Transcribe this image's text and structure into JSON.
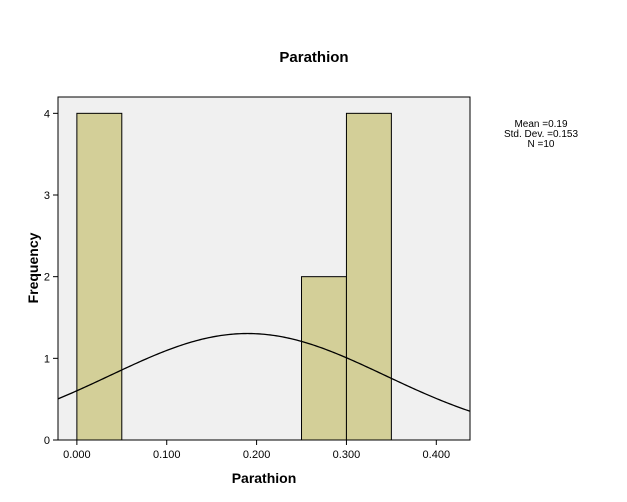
{
  "chart_data": {
    "type": "bar",
    "title": "Parathion",
    "xlabel": "Parathion",
    "ylabel": "Frequency",
    "bins": [
      {
        "x0": 0.0,
        "x1": 0.05,
        "count": 4
      },
      {
        "x0": 0.05,
        "x1": 0.1,
        "count": 0
      },
      {
        "x0": 0.1,
        "x1": 0.15,
        "count": 0
      },
      {
        "x0": 0.15,
        "x1": 0.2,
        "count": 0
      },
      {
        "x0": 0.2,
        "x1": 0.25,
        "count": 0
      },
      {
        "x0": 0.25,
        "x1": 0.3,
        "count": 2
      },
      {
        "x0": 0.3,
        "x1": 0.35,
        "count": 4
      }
    ],
    "xlim": [
      -0.021,
      0.4375
    ],
    "ylim": [
      0,
      4.2
    ],
    "x_ticks": [
      {
        "value": 0.0,
        "label": "0.000"
      },
      {
        "value": 0.1,
        "label": "0.100"
      },
      {
        "value": 0.2,
        "label": "0.200"
      },
      {
        "value": 0.3,
        "label": "0.300"
      },
      {
        "value": 0.4,
        "label": "0.400"
      }
    ],
    "y_ticks": [
      {
        "value": 0,
        "label": "0"
      },
      {
        "value": 1,
        "label": "1"
      },
      {
        "value": 2,
        "label": "2"
      },
      {
        "value": 3,
        "label": "3"
      },
      {
        "value": 4,
        "label": "4"
      }
    ],
    "normal_curve": {
      "mean": 0.19,
      "std": 0.153,
      "n": 10,
      "bin_width": 0.05
    },
    "stats_lines": [
      "Mean =0.19",
      "Std. Dev. =0.153",
      "N =10"
    ],
    "colors": {
      "bar_fill": "#d3cf98",
      "bar_stroke": "#000000",
      "plot_bg": "#f0f0f0",
      "curve": "#000000"
    }
  }
}
